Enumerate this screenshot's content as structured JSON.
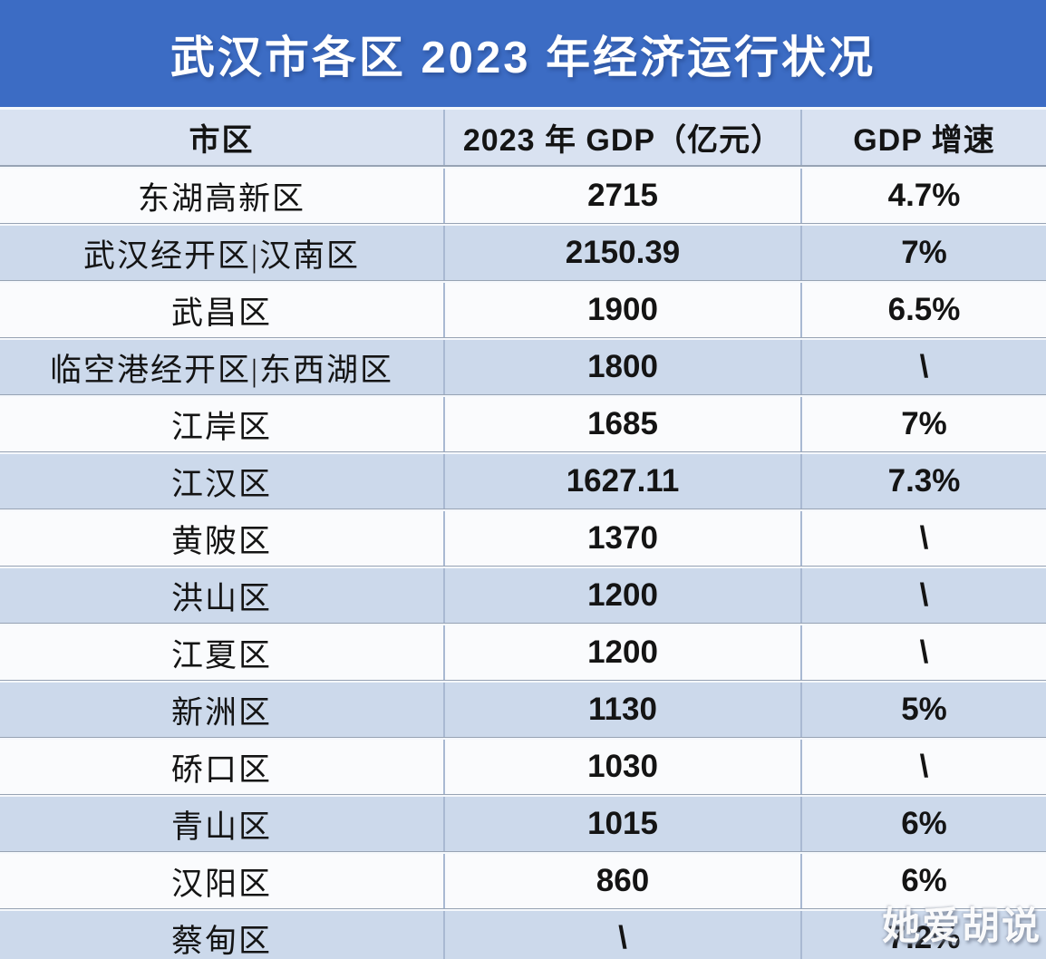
{
  "title": "武汉市各区 2023 年经济运行状况",
  "watermark": "她爱胡说",
  "chart_data": {
    "type": "table",
    "title": "武汉市各区 2023 年经济运行状况",
    "headers": [
      "市区",
      "2023 年 GDP（亿元）",
      "GDP 增速"
    ],
    "rows": [
      {
        "district": "东湖高新区",
        "gdp": "2715",
        "growth": "4.7%"
      },
      {
        "district": "武汉经开区|汉南区",
        "gdp": "2150.39",
        "growth": "7%"
      },
      {
        "district": "武昌区",
        "gdp": "1900",
        "growth": "6.5%"
      },
      {
        "district": "临空港经开区|东西湖区",
        "gdp": "1800",
        "growth": "\\"
      },
      {
        "district": "江岸区",
        "gdp": "1685",
        "growth": "7%"
      },
      {
        "district": "江汉区",
        "gdp": "1627.11",
        "growth": "7.3%"
      },
      {
        "district": "黄陂区",
        "gdp": "1370",
        "growth": "\\"
      },
      {
        "district": "洪山区",
        "gdp": "1200",
        "growth": "\\"
      },
      {
        "district": "江夏区",
        "gdp": "1200",
        "growth": "\\"
      },
      {
        "district": "新洲区",
        "gdp": "1130",
        "growth": "5%"
      },
      {
        "district": "硚口区",
        "gdp": "1030",
        "growth": "\\"
      },
      {
        "district": "青山区",
        "gdp": "1015",
        "growth": "6%"
      },
      {
        "district": "汉阳区",
        "gdp": "860",
        "growth": "6%"
      },
      {
        "district": "蔡甸区",
        "gdp": "\\",
        "growth": "7.2%"
      }
    ],
    "units": "亿元",
    "year": "2023"
  },
  "colors": {
    "title_bg": "#3c6cc4",
    "title_text": "#ffffff",
    "header_bg": "#d9e2f1",
    "row_light": "#fafbfd",
    "row_shade": "#ccd9eb",
    "cell_text": "#141414"
  }
}
